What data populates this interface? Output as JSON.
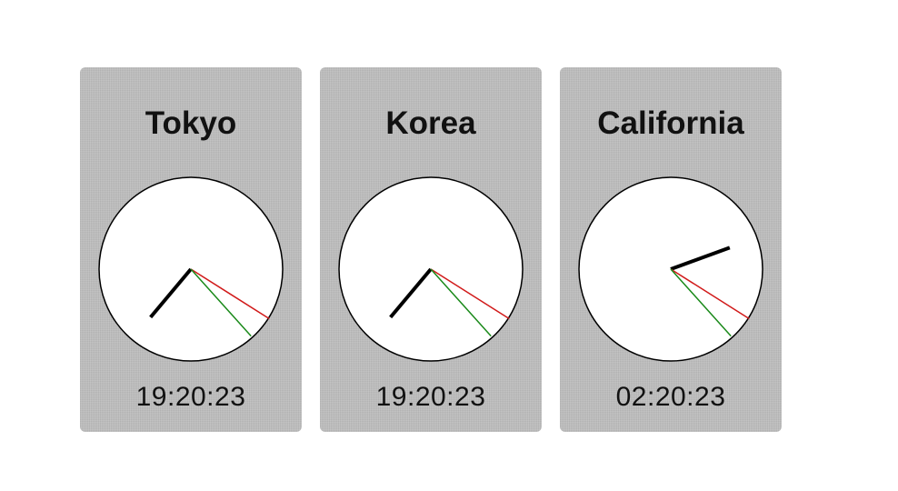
{
  "clocks": [
    {
      "city": "Tokyo",
      "time": "19:20:23",
      "hours": 19,
      "minutes": 20,
      "seconds": 23
    },
    {
      "city": "Korea",
      "time": "19:20:23",
      "hours": 19,
      "minutes": 20,
      "seconds": 23
    },
    {
      "city": "California",
      "time": "02:20:23",
      "hours": 2,
      "minutes": 20,
      "seconds": 23
    }
  ],
  "colors": {
    "card_bg": "#bdbdbd",
    "face": "#ffffff",
    "hour_hand": "#000000",
    "minute_hand": "#d11a1a",
    "second_hand": "#1a8a1a"
  }
}
